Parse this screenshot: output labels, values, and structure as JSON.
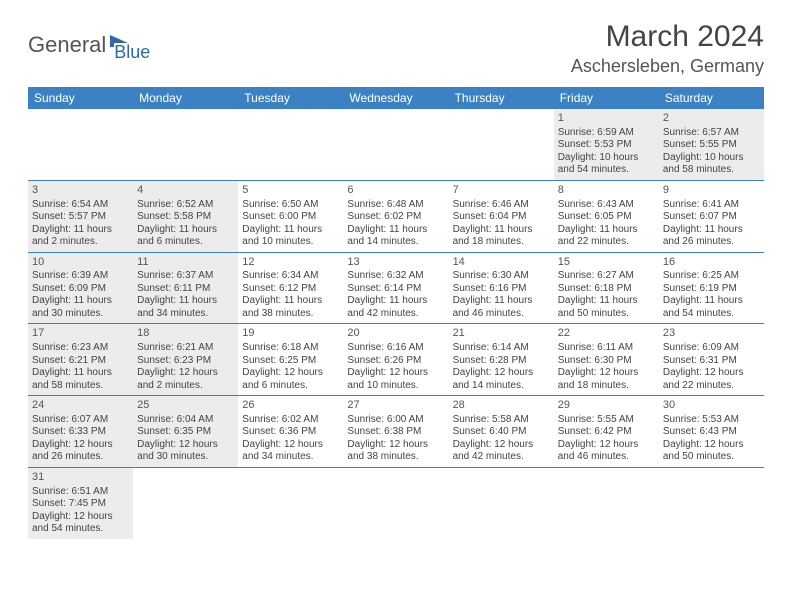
{
  "logo": {
    "word1": "General",
    "word2": "Blue",
    "accent_color": "#2d6aa8"
  },
  "title": "March 2024",
  "location": "Aschersleben, Germany",
  "colors": {
    "header_bg": "#3b82c4",
    "header_text": "#ffffff",
    "shaded_bg": "#ececec",
    "row_border": "#3b82c4",
    "text": "#444444"
  },
  "weekdays": [
    "Sunday",
    "Monday",
    "Tuesday",
    "Wednesday",
    "Thursday",
    "Friday",
    "Saturday"
  ],
  "weeks": [
    [
      {
        "blank": true,
        "shaded": false
      },
      {
        "blank": true,
        "shaded": false
      },
      {
        "blank": true,
        "shaded": false
      },
      {
        "blank": true,
        "shaded": false
      },
      {
        "blank": true,
        "shaded": false
      },
      {
        "day": "1",
        "shaded": true,
        "sunrise": "Sunrise: 6:59 AM",
        "sunset": "Sunset: 5:53 PM",
        "daylight1": "Daylight: 10 hours",
        "daylight2": "and 54 minutes."
      },
      {
        "day": "2",
        "shaded": true,
        "sunrise": "Sunrise: 6:57 AM",
        "sunset": "Sunset: 5:55 PM",
        "daylight1": "Daylight: 10 hours",
        "daylight2": "and 58 minutes."
      }
    ],
    [
      {
        "day": "3",
        "shaded": true,
        "sunrise": "Sunrise: 6:54 AM",
        "sunset": "Sunset: 5:57 PM",
        "daylight1": "Daylight: 11 hours",
        "daylight2": "and 2 minutes."
      },
      {
        "day": "4",
        "shaded": true,
        "sunrise": "Sunrise: 6:52 AM",
        "sunset": "Sunset: 5:58 PM",
        "daylight1": "Daylight: 11 hours",
        "daylight2": "and 6 minutes."
      },
      {
        "day": "5",
        "shaded": false,
        "sunrise": "Sunrise: 6:50 AM",
        "sunset": "Sunset: 6:00 PM",
        "daylight1": "Daylight: 11 hours",
        "daylight2": "and 10 minutes."
      },
      {
        "day": "6",
        "shaded": false,
        "sunrise": "Sunrise: 6:48 AM",
        "sunset": "Sunset: 6:02 PM",
        "daylight1": "Daylight: 11 hours",
        "daylight2": "and 14 minutes."
      },
      {
        "day": "7",
        "shaded": false,
        "sunrise": "Sunrise: 6:46 AM",
        "sunset": "Sunset: 6:04 PM",
        "daylight1": "Daylight: 11 hours",
        "daylight2": "and 18 minutes."
      },
      {
        "day": "8",
        "shaded": false,
        "sunrise": "Sunrise: 6:43 AM",
        "sunset": "Sunset: 6:05 PM",
        "daylight1": "Daylight: 11 hours",
        "daylight2": "and 22 minutes."
      },
      {
        "day": "9",
        "shaded": false,
        "sunrise": "Sunrise: 6:41 AM",
        "sunset": "Sunset: 6:07 PM",
        "daylight1": "Daylight: 11 hours",
        "daylight2": "and 26 minutes."
      }
    ],
    [
      {
        "day": "10",
        "shaded": true,
        "sunrise": "Sunrise: 6:39 AM",
        "sunset": "Sunset: 6:09 PM",
        "daylight1": "Daylight: 11 hours",
        "daylight2": "and 30 minutes."
      },
      {
        "day": "11",
        "shaded": true,
        "sunrise": "Sunrise: 6:37 AM",
        "sunset": "Sunset: 6:11 PM",
        "daylight1": "Daylight: 11 hours",
        "daylight2": "and 34 minutes."
      },
      {
        "day": "12",
        "shaded": false,
        "sunrise": "Sunrise: 6:34 AM",
        "sunset": "Sunset: 6:12 PM",
        "daylight1": "Daylight: 11 hours",
        "daylight2": "and 38 minutes."
      },
      {
        "day": "13",
        "shaded": false,
        "sunrise": "Sunrise: 6:32 AM",
        "sunset": "Sunset: 6:14 PM",
        "daylight1": "Daylight: 11 hours",
        "daylight2": "and 42 minutes."
      },
      {
        "day": "14",
        "shaded": false,
        "sunrise": "Sunrise: 6:30 AM",
        "sunset": "Sunset: 6:16 PM",
        "daylight1": "Daylight: 11 hours",
        "daylight2": "and 46 minutes."
      },
      {
        "day": "15",
        "shaded": false,
        "sunrise": "Sunrise: 6:27 AM",
        "sunset": "Sunset: 6:18 PM",
        "daylight1": "Daylight: 11 hours",
        "daylight2": "and 50 minutes."
      },
      {
        "day": "16",
        "shaded": false,
        "sunrise": "Sunrise: 6:25 AM",
        "sunset": "Sunset: 6:19 PM",
        "daylight1": "Daylight: 11 hours",
        "daylight2": "and 54 minutes."
      }
    ],
    [
      {
        "day": "17",
        "shaded": true,
        "sunrise": "Sunrise: 6:23 AM",
        "sunset": "Sunset: 6:21 PM",
        "daylight1": "Daylight: 11 hours",
        "daylight2": "and 58 minutes."
      },
      {
        "day": "18",
        "shaded": true,
        "sunrise": "Sunrise: 6:21 AM",
        "sunset": "Sunset: 6:23 PM",
        "daylight1": "Daylight: 12 hours",
        "daylight2": "and 2 minutes."
      },
      {
        "day": "19",
        "shaded": false,
        "sunrise": "Sunrise: 6:18 AM",
        "sunset": "Sunset: 6:25 PM",
        "daylight1": "Daylight: 12 hours",
        "daylight2": "and 6 minutes."
      },
      {
        "day": "20",
        "shaded": false,
        "sunrise": "Sunrise: 6:16 AM",
        "sunset": "Sunset: 6:26 PM",
        "daylight1": "Daylight: 12 hours",
        "daylight2": "and 10 minutes."
      },
      {
        "day": "21",
        "shaded": false,
        "sunrise": "Sunrise: 6:14 AM",
        "sunset": "Sunset: 6:28 PM",
        "daylight1": "Daylight: 12 hours",
        "daylight2": "and 14 minutes."
      },
      {
        "day": "22",
        "shaded": false,
        "sunrise": "Sunrise: 6:11 AM",
        "sunset": "Sunset: 6:30 PM",
        "daylight1": "Daylight: 12 hours",
        "daylight2": "and 18 minutes."
      },
      {
        "day": "23",
        "shaded": false,
        "sunrise": "Sunrise: 6:09 AM",
        "sunset": "Sunset: 6:31 PM",
        "daylight1": "Daylight: 12 hours",
        "daylight2": "and 22 minutes."
      }
    ],
    [
      {
        "day": "24",
        "shaded": true,
        "sunrise": "Sunrise: 6:07 AM",
        "sunset": "Sunset: 6:33 PM",
        "daylight1": "Daylight: 12 hours",
        "daylight2": "and 26 minutes."
      },
      {
        "day": "25",
        "shaded": true,
        "sunrise": "Sunrise: 6:04 AM",
        "sunset": "Sunset: 6:35 PM",
        "daylight1": "Daylight: 12 hours",
        "daylight2": "and 30 minutes."
      },
      {
        "day": "26",
        "shaded": false,
        "sunrise": "Sunrise: 6:02 AM",
        "sunset": "Sunset: 6:36 PM",
        "daylight1": "Daylight: 12 hours",
        "daylight2": "and 34 minutes."
      },
      {
        "day": "27",
        "shaded": false,
        "sunrise": "Sunrise: 6:00 AM",
        "sunset": "Sunset: 6:38 PM",
        "daylight1": "Daylight: 12 hours",
        "daylight2": "and 38 minutes."
      },
      {
        "day": "28",
        "shaded": false,
        "sunrise": "Sunrise: 5:58 AM",
        "sunset": "Sunset: 6:40 PM",
        "daylight1": "Daylight: 12 hours",
        "daylight2": "and 42 minutes."
      },
      {
        "day": "29",
        "shaded": false,
        "sunrise": "Sunrise: 5:55 AM",
        "sunset": "Sunset: 6:42 PM",
        "daylight1": "Daylight: 12 hours",
        "daylight2": "and 46 minutes."
      },
      {
        "day": "30",
        "shaded": false,
        "sunrise": "Sunrise: 5:53 AM",
        "sunset": "Sunset: 6:43 PM",
        "daylight1": "Daylight: 12 hours",
        "daylight2": "and 50 minutes."
      }
    ],
    [
      {
        "day": "31",
        "shaded": true,
        "sunrise": "Sunrise: 6:51 AM",
        "sunset": "Sunset: 7:45 PM",
        "daylight1": "Daylight: 12 hours",
        "daylight2": "and 54 minutes."
      },
      {
        "blank": true,
        "shaded": false
      },
      {
        "blank": true,
        "shaded": false
      },
      {
        "blank": true,
        "shaded": false
      },
      {
        "blank": true,
        "shaded": false
      },
      {
        "blank": true,
        "shaded": false
      },
      {
        "blank": true,
        "shaded": false
      }
    ]
  ]
}
